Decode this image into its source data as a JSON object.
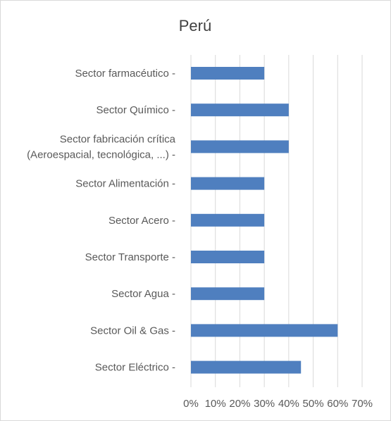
{
  "chart_data": {
    "type": "bar",
    "orientation": "horizontal",
    "title": "Perú",
    "categories": [
      [
        "Sector farmacéutico -"
      ],
      [
        "Sector Químico -"
      ],
      [
        "Sector fabricación crítica",
        "(Aeroespacial, tecnológica, ...) -"
      ],
      [
        "Sector Alimentación -"
      ],
      [
        "Sector Acero -"
      ],
      [
        "Sector Transporte -"
      ],
      [
        "Sector Agua -"
      ],
      [
        "Sector Oil & Gas -"
      ],
      [
        "Sector Eléctrico -"
      ]
    ],
    "values": [
      30,
      40,
      40,
      30,
      30,
      30,
      30,
      60,
      45
    ],
    "xlim": [
      0,
      70
    ],
    "xticks": [
      0,
      10,
      20,
      30,
      40,
      50,
      60,
      70
    ],
    "xtick_labels": [
      "0%",
      "10%",
      "20%",
      "30%",
      "40%",
      "50%",
      "60%",
      "70%"
    ],
    "grid": "vertical",
    "legend": "none",
    "bar_color": "#4f7fbf",
    "grid_color": "#d9d9d9"
  }
}
